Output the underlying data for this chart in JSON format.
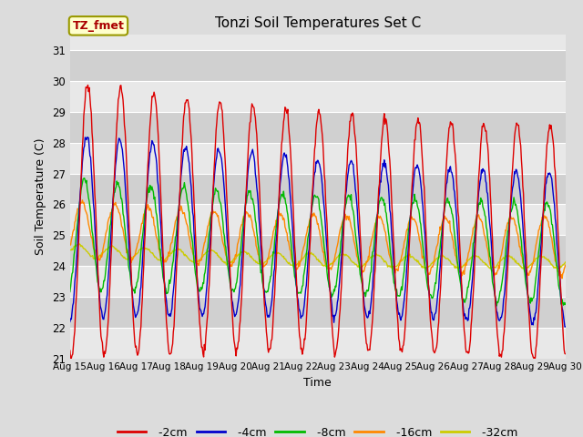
{
  "title": "Tonzi Soil Temperatures Set C",
  "xlabel": "Time",
  "ylabel": "Soil Temperature (C)",
  "ylim": [
    21.0,
    31.5
  ],
  "yticks": [
    21.0,
    22.0,
    23.0,
    24.0,
    25.0,
    26.0,
    27.0,
    28.0,
    29.0,
    30.0,
    31.0
  ],
  "bg_color": "#dcdcdc",
  "plot_bg_color": "#dcdcdc",
  "stripe_light": "#e8e8e8",
  "stripe_dark": "#d0d0d0",
  "grid_color": "#ffffff",
  "legend_label": "TZ_fmet",
  "legend_box_color": "#ffffcc",
  "legend_box_edge": "#999900",
  "series_colors": {
    "-2cm": "#dd0000",
    "-4cm": "#0000cc",
    "-8cm": "#00bb00",
    "-16cm": "#ff8800",
    "-32cm": "#cccc00"
  },
  "xtick_labels": [
    "Aug 15",
    "Aug 16",
    "Aug 17",
    "Aug 18",
    "Aug 19",
    "Aug 20",
    "Aug 21",
    "Aug 22",
    "Aug 23",
    "Aug 24",
    "Aug 25",
    "Aug 26",
    "Aug 27",
    "Aug 28",
    "Aug 29",
    "Aug 30"
  ],
  "n_days": 15,
  "n_points_per_day": 48
}
